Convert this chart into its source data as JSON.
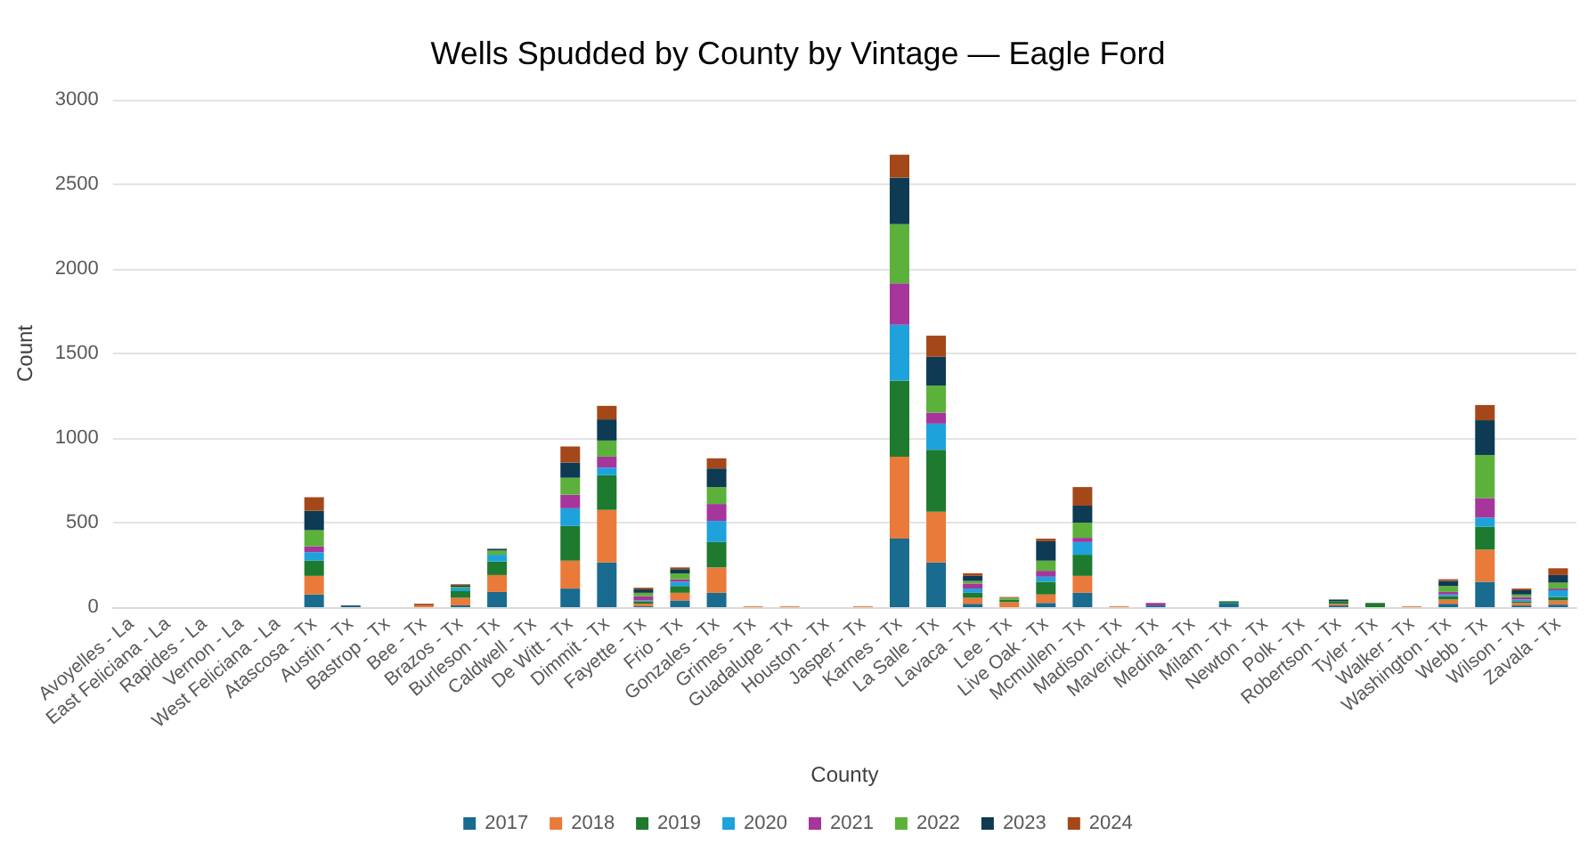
{
  "chart_data": {
    "type": "bar",
    "title": "Wells Spudded by County by Vintage — Eagle Ford",
    "xlabel": "County",
    "ylabel": "Count",
    "stacked": true,
    "grid": "y",
    "legend": "bottom",
    "ylim": [
      0,
      3000
    ],
    "yticks": [
      0,
      500,
      1000,
      1500,
      2000,
      2500,
      3000
    ],
    "categories": [
      "Avoyelles - La",
      "East Feliciana - La",
      "Rapides - La",
      "Vernon - La",
      "West Feliciana - La",
      "Atascosa - Tx",
      "Austin - Tx",
      "Bastrop - Tx",
      "Bee - Tx",
      "Brazos - Tx",
      "Burleson - Tx",
      "Caldwell - Tx",
      "De Witt - Tx",
      "Dimmit - Tx",
      "Fayette - Tx",
      "Frio - Tx",
      "Gonzales - Tx",
      "Grimes - Tx",
      "Guadalupe - Tx",
      "Houston - Tx",
      "Jasper - Tx",
      "Karnes - Tx",
      "La Salle - Tx",
      "Lavaca - Tx",
      "Lee - Tx",
      "Live Oak - Tx",
      "Mcmullen - Tx",
      "Madison - Tx",
      "Maverick - Tx",
      "Medina - Tx",
      "Milam - Tx",
      "Newton - Tx",
      "Polk - Tx",
      "Robertson - Tx",
      "Tyler - Tx",
      "Walker - Tx",
      "Washington - Tx",
      "Webb - Tx",
      "Wilson - Tx",
      "Zavala - Tx"
    ],
    "series": [
      {
        "name": "2017",
        "color": "#196b8f",
        "values": [
          0,
          0,
          0,
          0,
          0,
          75,
          5,
          0,
          0,
          10,
          90,
          0,
          110,
          265,
          5,
          40,
          85,
          0,
          0,
          0,
          0,
          405,
          265,
          20,
          0,
          25,
          85,
          0,
          10,
          0,
          25,
          0,
          0,
          10,
          0,
          0,
          20,
          150,
          10,
          15
        ]
      },
      {
        "name": "2018",
        "color": "#e97a3a",
        "values": [
          0,
          0,
          0,
          0,
          0,
          110,
          0,
          0,
          10,
          45,
          100,
          0,
          165,
          310,
          15,
          45,
          150,
          5,
          5,
          0,
          5,
          485,
          300,
          35,
          30,
          50,
          100,
          5,
          0,
          0,
          0,
          0,
          0,
          10,
          0,
          5,
          25,
          190,
          15,
          25
        ]
      },
      {
        "name": "2019",
        "color": "#1e7a2e",
        "values": [
          0,
          0,
          0,
          0,
          0,
          90,
          0,
          0,
          0,
          40,
          80,
          0,
          205,
          205,
          15,
          40,
          150,
          0,
          0,
          0,
          0,
          450,
          365,
          30,
          15,
          75,
          125,
          0,
          0,
          0,
          10,
          0,
          0,
          15,
          25,
          0,
          20,
          135,
          10,
          20
        ]
      },
      {
        "name": "2020",
        "color": "#1ea2dc",
        "values": [
          0,
          0,
          0,
          0,
          0,
          50,
          0,
          0,
          0,
          15,
          40,
          0,
          105,
          45,
          5,
          25,
          125,
          0,
          0,
          0,
          0,
          330,
          155,
          25,
          0,
          30,
          75,
          0,
          0,
          0,
          0,
          0,
          0,
          0,
          0,
          0,
          10,
          55,
          10,
          40
        ]
      },
      {
        "name": "2021",
        "color": "#a6359c",
        "values": [
          0,
          0,
          0,
          0,
          0,
          35,
          0,
          0,
          0,
          0,
          0,
          0,
          80,
          65,
          25,
          15,
          100,
          0,
          0,
          0,
          0,
          245,
          65,
          30,
          0,
          35,
          25,
          0,
          15,
          0,
          0,
          0,
          0,
          0,
          0,
          0,
          15,
          115,
          15,
          10
        ]
      },
      {
        "name": "2022",
        "color": "#5cb13a",
        "values": [
          0,
          0,
          0,
          0,
          0,
          95,
          0,
          0,
          0,
          10,
          25,
          0,
          100,
          95,
          20,
          35,
          100,
          0,
          0,
          0,
          0,
          350,
          160,
          15,
          10,
          60,
          90,
          0,
          0,
          0,
          0,
          0,
          0,
          0,
          0,
          0,
          35,
          255,
          15,
          35
        ]
      },
      {
        "name": "2023",
        "color": "#0e3a53",
        "values": [
          0,
          0,
          0,
          0,
          0,
          115,
          5,
          0,
          0,
          10,
          10,
          0,
          90,
          125,
          20,
          25,
          110,
          0,
          0,
          0,
          0,
          275,
          170,
          30,
          0,
          115,
          100,
          0,
          0,
          0,
          0,
          0,
          0,
          10,
          0,
          0,
          30,
          205,
          25,
          45
        ]
      },
      {
        "name": "2024",
        "color": "#a4481a",
        "values": [
          0,
          0,
          0,
          0,
          0,
          80,
          0,
          0,
          10,
          5,
          0,
          0,
          95,
          80,
          10,
          10,
          60,
          0,
          0,
          0,
          0,
          135,
          125,
          15,
          5,
          15,
          110,
          0,
          0,
          0,
          0,
          0,
          0,
          0,
          0,
          0,
          10,
          90,
          10,
          40
        ]
      }
    ]
  }
}
